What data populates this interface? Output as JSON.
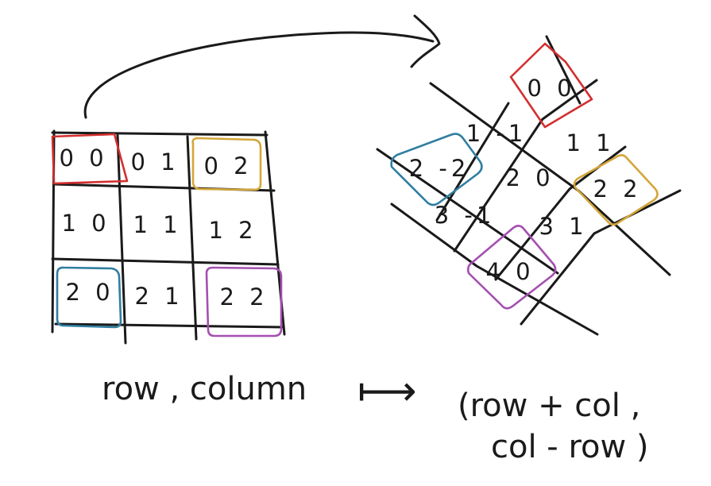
{
  "colors": {
    "ink": "#1a1a1a",
    "red": "#d32f2f",
    "orange": "#d4a63a",
    "blue": "#2f7ea0",
    "purple": "#a44fb0"
  },
  "source_grid": {
    "rows": [
      [
        "0 0",
        "0 1",
        "0 2"
      ],
      [
        "1 0",
        "1 1",
        "1 2"
      ],
      [
        "2 0",
        "2 1",
        "2 2"
      ]
    ]
  },
  "rotated_grid": {
    "cells": {
      "top": "0 0",
      "upper_left": "1 -1",
      "upper_right": "1 1",
      "left": "2 -2",
      "center": "2 0",
      "right": "2 2",
      "lower_left": "3 -1",
      "lower_right": "3 1",
      "bottom": "4 0"
    }
  },
  "formula": {
    "lhs": "row , column",
    "arrow_label": "⟼",
    "rhs_line1": "(row + col ,",
    "rhs_line2": "col - row )"
  }
}
